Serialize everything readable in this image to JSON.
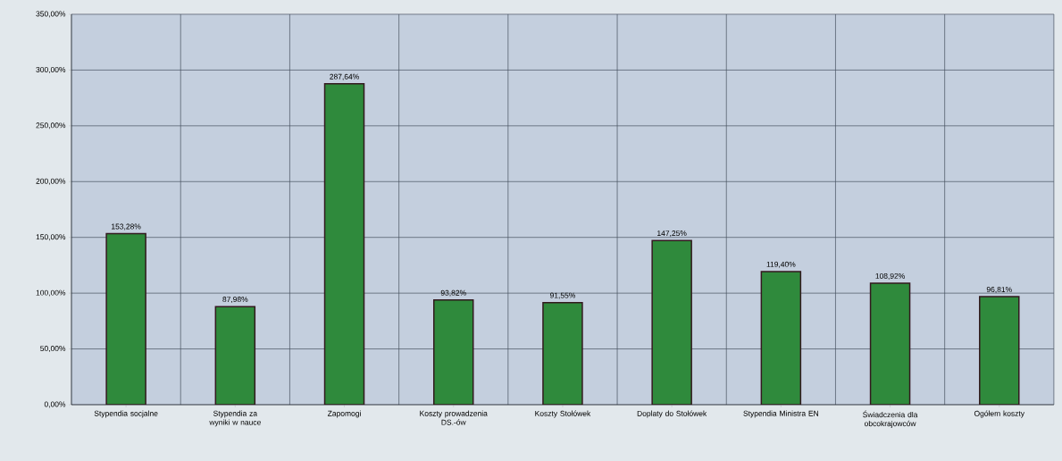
{
  "chart_data": {
    "type": "bar",
    "categories": [
      "Stypendia socjalne",
      "Stypendia za wyniki w nauce",
      "Zapomogi",
      "Koszty prowadzenia DS.-ów",
      "Koszty Stołówek",
      "Doplaty do Stołówek",
      "Stypendia Ministra EN",
      "Świadczenia dla obcokrajowców",
      "Ogółem koszty"
    ],
    "values": [
      153.28,
      87.98,
      287.64,
      93.82,
      91.55,
      147.25,
      119.4,
      108.92,
      96.81
    ],
    "value_labels": [
      "153,28%",
      "87,98%",
      "287,64%",
      "93,82%",
      "91,55%",
      "147,25%",
      "119,40%",
      "108,92%",
      "96,81%"
    ],
    "color": "#2f8a3c",
    "ylim": [
      0,
      350
    ],
    "yticks": [
      {
        "value": 0,
        "label": "0,00%"
      },
      {
        "value": 50,
        "label": "50,00%"
      },
      {
        "value": 100,
        "label": "100,00%"
      },
      {
        "value": 150,
        "label": "150,00%"
      },
      {
        "value": 200,
        "label": "200,00%"
      },
      {
        "value": 250,
        "label": "250,00%"
      },
      {
        "value": 300,
        "label": "300,00%"
      },
      {
        "value": 350,
        "label": "350,00%"
      }
    ],
    "grid": true
  }
}
